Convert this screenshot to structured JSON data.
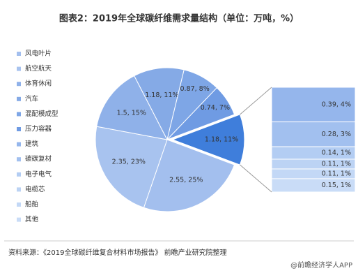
{
  "chart_data": {
    "type": "pie-of-bar",
    "title": "图表2：2019年全球碳纤维需求量结构（单位：万吨，%）",
    "categories": [
      "风电叶片",
      "航空航天",
      "体育休闲",
      "汽车",
      "混配模成型",
      "压力容器",
      "建筑",
      "碳碳复材",
      "电子电气",
      "电缆芯",
      "船舶",
      "其他"
    ],
    "values": [
      2.55,
      2.35,
      1.5,
      1.18,
      0.87,
      0.74,
      0.39,
      0.28,
      0.14,
      0.11,
      0.11,
      0.15
    ],
    "value_labels": [
      "2.55, 25%",
      "2.35, 23%",
      "1.5, 15%",
      "1.18, 11%",
      "0.87, 8%",
      "0.74, 7%",
      "0.39, 4%",
      "0.28, 3%",
      "0.14, 1%",
      "0.11, 1%",
      "0.11, 1%",
      "0.15, 1%"
    ],
    "colors": [
      "#a3bfee",
      "#a8c3ef",
      "#8fb1e9",
      "#85aae6",
      "#7ea6e6",
      "#6f9be3",
      "#95b6ec",
      "#a2c0ef",
      "#b3cdf3",
      "#bcd3f4",
      "#c3d8f6",
      "#c9dcf7"
    ],
    "other": {
      "value": 1.18,
      "value_label": "1.18, 11%",
      "color": "#3f7edb"
    },
    "legend": "left",
    "source": "资料来源：《2019全球碳纤维复合材料市场报告》 前瞻产业研究院整理",
    "watermark": "@前瞻经济学人APP"
  }
}
